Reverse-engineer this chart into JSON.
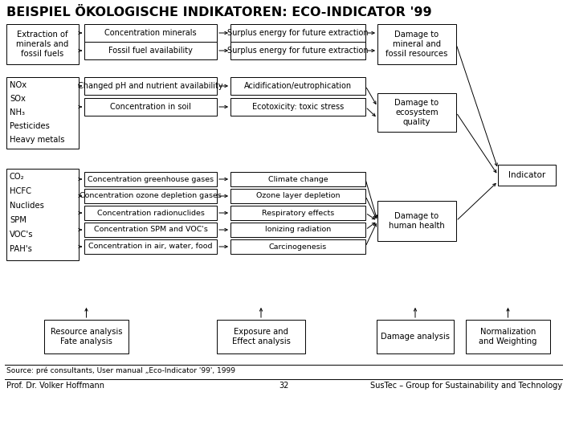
{
  "title": "BEISPIEL ÖKOLOGISCHE INDIKATOREN: ECO-INDICATOR '99",
  "bg_color": "#ffffff",
  "footer_source": "Source: pré consultants, User manual „Eco-Indicator '99', 1999",
  "footer_left": "Prof. Dr. Volker Hoffmann",
  "footer_center": "32",
  "footer_right": "SusTec – Group for Sustainability and Technology",
  "row1_left": "Extraction of\nminerals and\nfossil fuels",
  "row1_mid1_top": "Concentration minerals",
  "row1_mid1_bot": "Fossil fuel availability",
  "row1_mid2_top": "Surplus energy for future extraction",
  "row1_mid2_bot": "Surplus energy for future extraction",
  "row1_right": "Damage to\nmineral and\nfossil resources",
  "stressors1": [
    "NOx",
    "SOx",
    "NH₃",
    "Pesticides",
    "Heavy metals"
  ],
  "row2_mid1_top": "Changed pH and nutrient availability",
  "row2_mid1_bot": "Concentration in soil",
  "row2_mid2_top": "Acidification/eutrophication",
  "row2_mid2_bot": "Ecotoxicity: toxic stress",
  "row2_right": "Damage to\necosystem\nquality",
  "stressors2": [
    "CO₂",
    "HCFC",
    "Nuclides",
    "SPM",
    "VOC's",
    "PAH's"
  ],
  "row3_pairs": [
    [
      "Concentration greenhouse gases",
      "Climate change"
    ],
    [
      "Concentration ozone depletion gases",
      "Ozone layer depletion"
    ],
    [
      "Concentration radionuclides",
      "Respiratory effects"
    ],
    [
      "Concentration SPM and VOC's",
      "Ionizing radiation"
    ],
    [
      "Concentration in air, water, food",
      "Carcinogenesis"
    ]
  ],
  "row3_right": "Damage to\nhuman health",
  "indicator_label": "Indicator",
  "bottom_box1": "Resource analysis\nFate analysis",
  "bottom_box2": "Exposure and\nEffect analysis",
  "bottom_box3": "Damage analysis",
  "bottom_box4": "Normalization\nand Weighting"
}
